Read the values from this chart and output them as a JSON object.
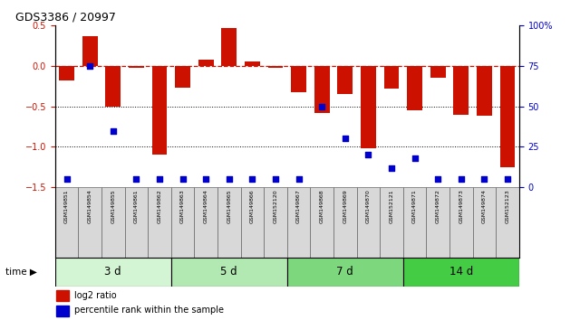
{
  "title": "GDS3386 / 20997",
  "samples": [
    "GSM149851",
    "GSM149854",
    "GSM149855",
    "GSM149861",
    "GSM149862",
    "GSM149863",
    "GSM149864",
    "GSM149865",
    "GSM149866",
    "GSM152120",
    "GSM149867",
    "GSM149868",
    "GSM149869",
    "GSM149870",
    "GSM152121",
    "GSM149871",
    "GSM149872",
    "GSM149873",
    "GSM149874",
    "GSM152123"
  ],
  "log2_ratio": [
    -0.18,
    0.37,
    -0.5,
    -0.02,
    -1.1,
    -0.27,
    0.08,
    0.47,
    0.06,
    -0.02,
    -0.32,
    -0.58,
    -0.35,
    -1.02,
    -0.28,
    -0.55,
    -0.15,
    -0.6,
    -0.62,
    -1.25
  ],
  "percentile": [
    5,
    75,
    35,
    5,
    5,
    5,
    5,
    5,
    5,
    5,
    5,
    50,
    30,
    20,
    12,
    18,
    5,
    5,
    5,
    5
  ],
  "groups": [
    {
      "label": "3 d",
      "start": 0,
      "end": 5
    },
    {
      "label": "5 d",
      "start": 5,
      "end": 10
    },
    {
      "label": "7 d",
      "start": 10,
      "end": 15
    },
    {
      "label": "14 d",
      "start": 15,
      "end": 20
    }
  ],
  "group_colors": [
    "#d4f5d4",
    "#b2e8b2",
    "#7dd87d",
    "#44cc44"
  ],
  "bar_color": "#cc1100",
  "dot_color": "#0000cc",
  "ylim_left": [
    -1.5,
    0.5
  ],
  "ylim_right": [
    0,
    100
  ],
  "yticks_left": [
    -1.5,
    -1.0,
    -0.5,
    0.0,
    0.5
  ],
  "yticks_right": [
    0,
    25,
    50,
    75,
    100
  ],
  "hlines": [
    -0.5,
    -1.0
  ],
  "hline_zero": 0.0,
  "cell_color": "#d8d8d8",
  "background_color": "#ffffff"
}
